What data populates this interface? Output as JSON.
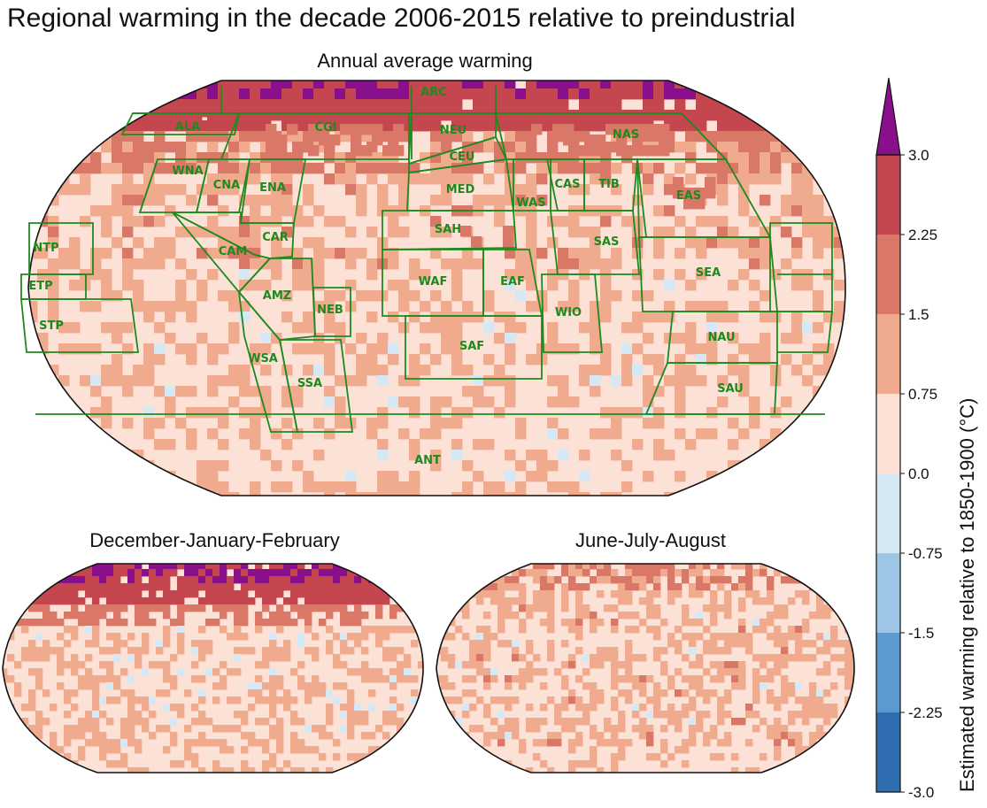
{
  "title": "Regional warming in the decade 2006-2015 relative to preindustrial",
  "main_map": {
    "title": "Annual average warming",
    "regions": [
      "ARC",
      "ALA",
      "CGI",
      "NEU",
      "NAS",
      "CEU",
      "WNA",
      "CNA",
      "ENA",
      "MED",
      "CAS",
      "TIB",
      "EAS",
      "WAS",
      "SAH",
      "SAS",
      "NTP",
      "CAR",
      "CAM",
      "SEA",
      "ETP",
      "WAF",
      "EAF",
      "AMZ",
      "NEB",
      "WIO",
      "STP",
      "SAF",
      "NAU",
      "WSA",
      "SSA",
      "SAU",
      "ANT"
    ]
  },
  "seasonal_maps": [
    {
      "title": "December-January-February"
    },
    {
      "title": "June-July-August"
    }
  ],
  "colorbar": {
    "label": "Estimated warming relative to 1850-1900 (°C)",
    "ticks": [
      "3.0",
      "2.25",
      "1.5",
      "0.75",
      "0.0",
      "-0.75",
      "-1.5",
      "-2.25",
      "-3.0"
    ],
    "colors": [
      "#2e6db0",
      "#5b9ad0",
      "#9dc6e6",
      "#d6e8f3",
      "#fbe1d6",
      "#f0aa8e",
      "#da7868",
      "#c4464e",
      "#8a0f8a"
    ],
    "extend": "max"
  },
  "colors": {
    "region_outline": "#1e8a1e",
    "map_outline": "#111111"
  }
}
